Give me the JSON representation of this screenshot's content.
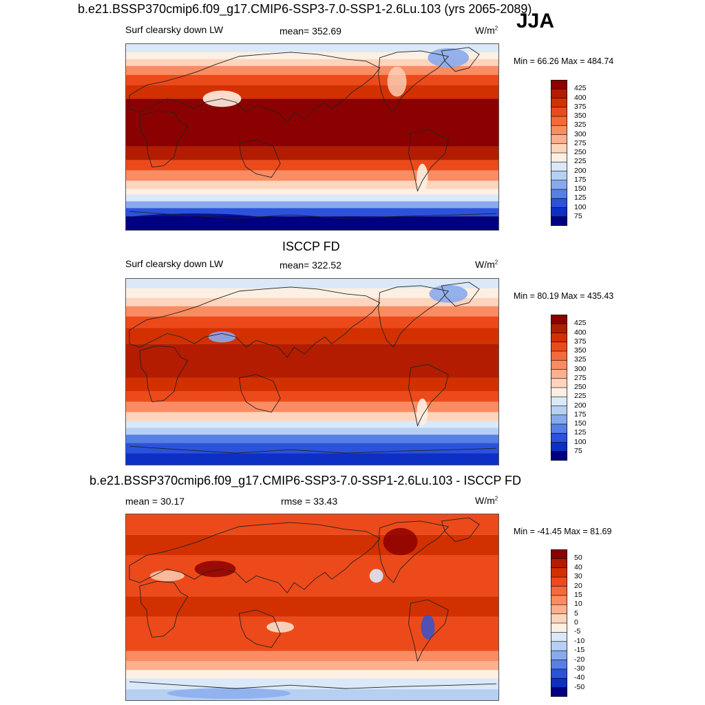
{
  "season": "JJA",
  "panels": [
    {
      "title": "b.e21.BSSP370cmip6.f09_g17.CMIP6-SSP3-7.0-SSP1-2.6Lu.103 (yrs 2065-2089)",
      "left_label": "Surf clearsky down LW",
      "center_label": "mean= 352.69",
      "units": "W/m",
      "units_sup": "2",
      "minmax": "Min =  66.26 Max = 484.74",
      "kind": "abs"
    },
    {
      "title": "ISCCP FD",
      "left_label": "Surf clearsky down LW",
      "center_label": "mean= 322.52",
      "units": "W/m",
      "units_sup": "2",
      "minmax": "Min =  80.19 Max = 435.43",
      "kind": "abs"
    },
    {
      "title": "b.e21.BSSP370cmip6.f09_g17.CMIP6-SSP3-7.0-SSP1-2.6Lu.103 - ISCCP FD",
      "left_label": "mean =  30.17",
      "center_label": "rmse =  33.43",
      "units": "W/m",
      "units_sup": "2",
      "minmax": "Min = -41.45 Max =  81.69",
      "kind": "diff"
    }
  ],
  "colorbars": {
    "abs": {
      "labels": [
        "425",
        "400",
        "375",
        "350",
        "325",
        "300",
        "275",
        "250",
        "225",
        "200",
        "175",
        "150",
        "125",
        "100",
        "75"
      ],
      "colors": [
        "#8b0000",
        "#b31c00",
        "#d33000",
        "#ec4a1a",
        "#f46a3a",
        "#f98c62",
        "#fcb08e",
        "#fdd4bc",
        "#fdf0e2",
        "#dbe8f8",
        "#b6d0f2",
        "#88aaec",
        "#5780e4",
        "#2b52db",
        "#0d2fc4",
        "#000080"
      ]
    },
    "diff": {
      "labels": [
        "50",
        "40",
        "30",
        "20",
        "15",
        "10",
        "5",
        "0",
        "-5",
        "-10",
        "-15",
        "-20",
        "-30",
        "-40",
        "-50"
      ],
      "colors": [
        "#8b0000",
        "#b31c00",
        "#d33000",
        "#ec4a1a",
        "#f46a3a",
        "#f98c62",
        "#fcb08e",
        "#fdd4bc",
        "#fdf0e2",
        "#dbe8f8",
        "#b6d0f2",
        "#88aaec",
        "#5780e4",
        "#2b52db",
        "#0d2fc4",
        "#000080"
      ]
    }
  },
  "chart_data": [
    {
      "type": "heatmap",
      "title": "b.e21.BSSP370cmip6.f09_g17.CMIP6-SSP3-7.0-SSP1-2.6Lu.103 (yrs 2065-2089)",
      "variable": "Surf clearsky down LW",
      "units": "W/m2",
      "mean": 352.69,
      "min": 66.26,
      "max": 484.74,
      "contour_levels": [
        75,
        100,
        125,
        150,
        175,
        200,
        225,
        250,
        275,
        300,
        325,
        350,
        375,
        400,
        425
      ]
    },
    {
      "type": "heatmap",
      "title": "ISCCP FD",
      "variable": "Surf clearsky down LW",
      "units": "W/m2",
      "mean": 322.52,
      "min": 80.19,
      "max": 435.43,
      "contour_levels": [
        75,
        100,
        125,
        150,
        175,
        200,
        225,
        250,
        275,
        300,
        325,
        350,
        375,
        400,
        425
      ]
    },
    {
      "type": "heatmap",
      "title": "b.e21.BSSP370cmip6.f09_g17.CMIP6-SSP3-7.0-SSP1-2.6Lu.103 - ISCCP FD",
      "units": "W/m2",
      "mean": 30.17,
      "rmse": 33.43,
      "min": -41.45,
      "max": 81.69,
      "contour_levels": [
        -50,
        -40,
        -30,
        -20,
        -15,
        -10,
        -5,
        0,
        5,
        10,
        15,
        20,
        30,
        40,
        50
      ]
    }
  ]
}
